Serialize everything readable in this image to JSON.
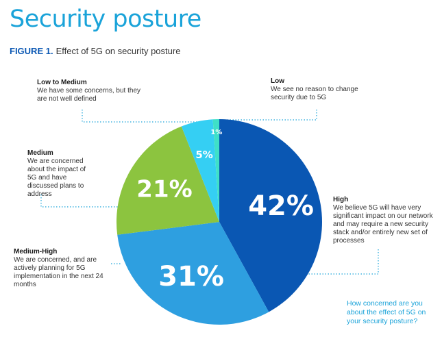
{
  "page": {
    "title": "Security posture",
    "figure_label": "FIGURE 1.",
    "figure_title": "Effect of 5G on security posture",
    "question": "How concerned are you about the effect of 5G on your security posture?"
  },
  "colors": {
    "title": "#1aa3d9",
    "figure_label": "#0a57b3",
    "callout_line": "#1aa3d9"
  },
  "chart_data": {
    "type": "pie",
    "title": "Effect of 5G on security posture",
    "start": "12 o'clock",
    "direction": "clockwise",
    "slices": [
      {
        "label": "High",
        "value": 42,
        "value_label": "42%",
        "color": "#0a57b3",
        "description": "We believe 5G will have very significant impact on our network and may require a new security stack and/or entirely new set of processes"
      },
      {
        "label": "Medium-High",
        "value": 31,
        "value_label": "31%",
        "color": "#2e9fe0",
        "description": "We are concerned, and are actively planning for 5G implementation in the next 24 months"
      },
      {
        "label": "Medium",
        "value": 21,
        "value_label": "21%",
        "color": "#8cc43f",
        "description": "We are concerned about the impact of 5G and have discussed plans to address"
      },
      {
        "label": "Low to Medium",
        "value": 5,
        "value_label": "5%",
        "color": "#35cff3",
        "description": "We have some concerns, but they are not well defined"
      },
      {
        "label": "Low",
        "value": 1,
        "value_label": "1%",
        "color": "#3fe0c8",
        "description": "We see no reason to change security due to 5G"
      }
    ]
  }
}
